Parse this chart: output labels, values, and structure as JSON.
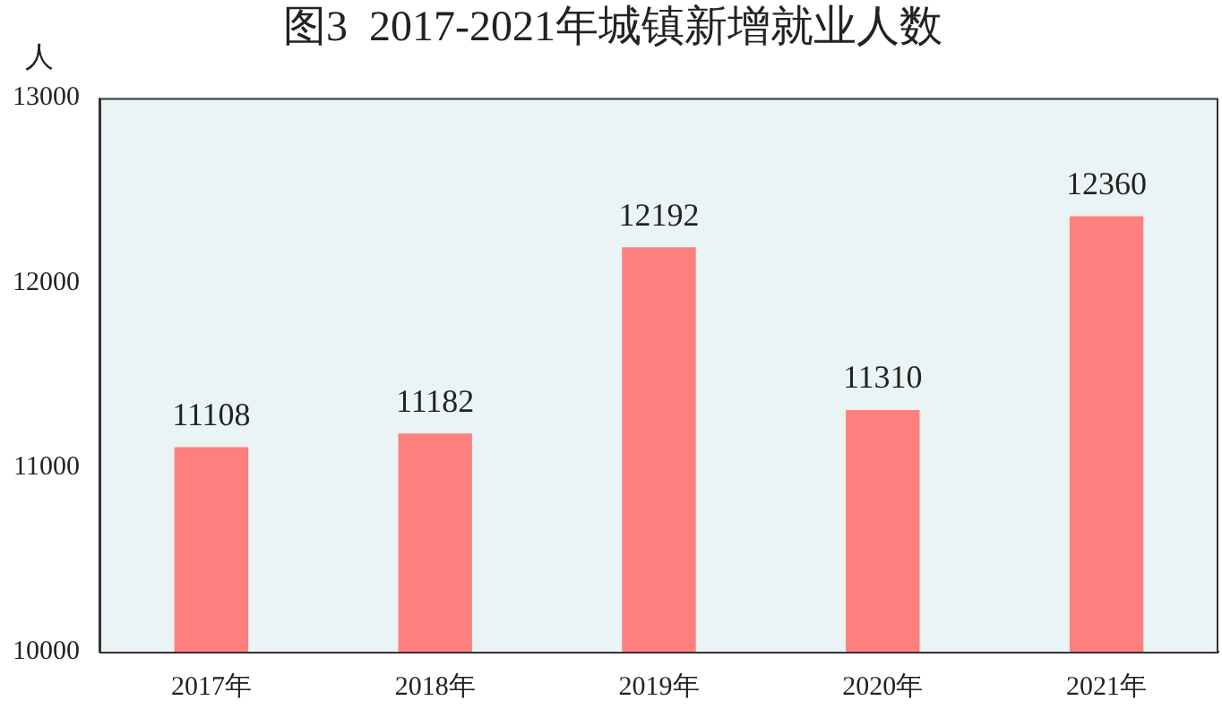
{
  "chart_data": {
    "type": "bar",
    "title": "图3  2017-2021年城镇新增就业人数",
    "ylabel": "人",
    "categories": [
      "2017年",
      "2018年",
      "2019年",
      "2020年",
      "2021年"
    ],
    "values": [
      11108,
      11182,
      12192,
      11310,
      12360
    ],
    "color": "#ff7f7f",
    "ylim": [
      10000,
      13000
    ],
    "yticks": [
      10000,
      11000,
      12000,
      13000
    ],
    "grid": false,
    "legend": false,
    "data_labels": true
  }
}
